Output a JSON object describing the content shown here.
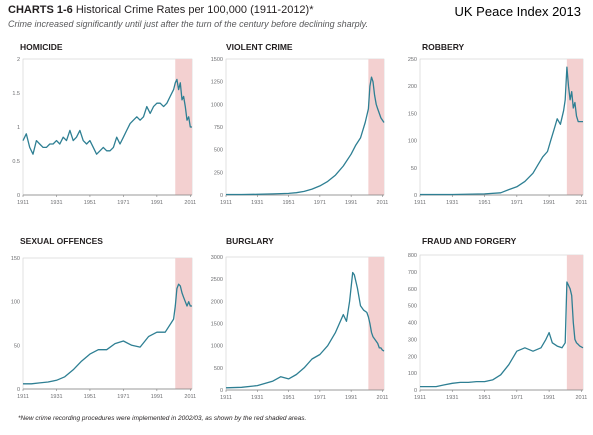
{
  "header": {
    "title_lead": "CHARTS 1-6",
    "title_rest": "Historical Crime Rates per 100,000 (1911-2012)*",
    "subtitle": "Crime increased significantly until just after the turn of the century before declining sharply.",
    "brand": "UK Peace Index 2013"
  },
  "footnote": "*New crime recording procedures were implemented in 2002/03, as shown by the red shaded areas.",
  "colors": {
    "line": "#2e7f93",
    "shade": "#f3d0d0",
    "axis": "#808080",
    "grid": "#cfcfcf"
  },
  "chart_data": [
    {
      "type": "line",
      "title": "HOMICIDE",
      "xlim": [
        1911,
        2012
      ],
      "ylim": [
        0,
        2
      ],
      "x_ticks": [
        "1911",
        "1931",
        "1951",
        "1971",
        "1991",
        "2011"
      ],
      "y_ticks": [
        "0",
        "0.5",
        "1",
        "1.5",
        "2"
      ],
      "shaded": [
        2002,
        2012
      ],
      "x": [
        1911,
        1913,
        1915,
        1917,
        1919,
        1921,
        1923,
        1925,
        1927,
        1929,
        1931,
        1933,
        1935,
        1937,
        1939,
        1941,
        1943,
        1945,
        1947,
        1949,
        1951,
        1953,
        1955,
        1957,
        1959,
        1961,
        1963,
        1965,
        1967,
        1969,
        1971,
        1973,
        1975,
        1977,
        1979,
        1981,
        1983,
        1985,
        1987,
        1989,
        1991,
        1993,
        1995,
        1997,
        1999,
        2001,
        2002,
        2003,
        2004,
        2005,
        2006,
        2007,
        2008,
        2009,
        2010,
        2011,
        2012
      ],
      "y": [
        0.8,
        0.9,
        0.7,
        0.6,
        0.8,
        0.75,
        0.7,
        0.7,
        0.75,
        0.75,
        0.8,
        0.75,
        0.85,
        0.8,
        0.95,
        0.8,
        0.85,
        0.95,
        0.8,
        0.75,
        0.8,
        0.7,
        0.6,
        0.65,
        0.7,
        0.65,
        0.65,
        0.7,
        0.85,
        0.75,
        0.85,
        0.95,
        1.05,
        1.1,
        1.15,
        1.1,
        1.15,
        1.3,
        1.2,
        1.3,
        1.35,
        1.35,
        1.3,
        1.35,
        1.45,
        1.55,
        1.65,
        1.7,
        1.55,
        1.65,
        1.4,
        1.45,
        1.3,
        1.1,
        1.15,
        1.0,
        1.0
      ]
    },
    {
      "type": "line",
      "title": "VIOLENT CRIME",
      "xlim": [
        1911,
        2012
      ],
      "ylim": [
        0,
        1500
      ],
      "x_ticks": [
        "1911",
        "1931",
        "1951",
        "1971",
        "1991",
        "2011"
      ],
      "y_ticks": [
        "0",
        "250",
        "500",
        "750",
        "1000",
        "1250",
        "1500"
      ],
      "shaded": [
        2002,
        2012
      ],
      "x": [
        1911,
        1921,
        1931,
        1941,
        1951,
        1956,
        1961,
        1966,
        1971,
        1976,
        1981,
        1986,
        1991,
        1994,
        1997,
        2000,
        2002,
        2003,
        2004,
        2005,
        2006,
        2007,
        2008,
        2009,
        2010,
        2012
      ],
      "y": [
        5,
        6,
        8,
        12,
        18,
        25,
        40,
        65,
        100,
        150,
        220,
        320,
        450,
        550,
        630,
        800,
        950,
        1200,
        1300,
        1250,
        1100,
        1000,
        950,
        900,
        850,
        800
      ]
    },
    {
      "type": "line",
      "title": "ROBBERY",
      "xlim": [
        1911,
        2012
      ],
      "ylim": [
        0,
        250
      ],
      "x_ticks": [
        "1911",
        "1931",
        "1951",
        "1971",
        "1991",
        "2011"
      ],
      "y_ticks": [
        "0",
        "50",
        "100",
        "150",
        "200",
        "250"
      ],
      "shaded": [
        2002,
        2012
      ],
      "x": [
        1911,
        1931,
        1951,
        1961,
        1966,
        1971,
        1976,
        1981,
        1984,
        1987,
        1990,
        1992,
        1994,
        1996,
        1998,
        2000,
        2001,
        2002,
        2003,
        2004,
        2005,
        2006,
        2007,
        2008,
        2009,
        2010,
        2012
      ],
      "y": [
        1,
        1,
        2,
        4,
        10,
        15,
        25,
        40,
        55,
        70,
        80,
        100,
        120,
        140,
        130,
        155,
        175,
        235,
        200,
        175,
        190,
        160,
        170,
        145,
        135,
        135,
        135
      ]
    },
    {
      "type": "line",
      "title": "SEXUAL OFFENCES",
      "xlim": [
        1911,
        2012
      ],
      "ylim": [
        0,
        150
      ],
      "x_ticks": [
        "1911",
        "1931",
        "1951",
        "1971",
        "1991",
        "2011"
      ],
      "y_ticks": [
        "0",
        "50",
        "100",
        "150"
      ],
      "shaded": [
        2002,
        2012
      ],
      "x": [
        1911,
        1916,
        1921,
        1926,
        1931,
        1936,
        1941,
        1946,
        1951,
        1956,
        1961,
        1966,
        1971,
        1976,
        1981,
        1986,
        1991,
        1996,
        2001,
        2002,
        2003,
        2004,
        2005,
        2006,
        2007,
        2008,
        2009,
        2010,
        2011,
        2012
      ],
      "y": [
        6,
        6,
        7,
        8,
        10,
        14,
        22,
        32,
        40,
        45,
        45,
        52,
        55,
        50,
        48,
        60,
        65,
        65,
        80,
        95,
        115,
        120,
        118,
        110,
        105,
        100,
        95,
        100,
        95,
        95
      ]
    },
    {
      "type": "line",
      "title": "BURGLARY",
      "xlim": [
        1911,
        2012
      ],
      "ylim": [
        0,
        3000
      ],
      "x_ticks": [
        "1911",
        "1931",
        "1951",
        "1971",
        "1991",
        "2011"
      ],
      "y_ticks": [
        "0",
        "500",
        "1000",
        "1500",
        "2000",
        "2500",
        "3000"
      ],
      "shaded": [
        2002,
        2012
      ],
      "x": [
        1911,
        1921,
        1931,
        1941,
        1946,
        1951,
        1956,
        1961,
        1966,
        1971,
        1976,
        1981,
        1986,
        1988,
        1990,
        1992,
        1993,
        1995,
        1997,
        1999,
        2001,
        2002,
        2003,
        2004,
        2005,
        2006,
        2007,
        2008,
        2009,
        2010,
        2011,
        2012
      ],
      "y": [
        50,
        60,
        100,
        200,
        300,
        250,
        350,
        500,
        700,
        800,
        1000,
        1300,
        1700,
        1550,
        2000,
        2650,
        2600,
        2300,
        1900,
        1800,
        1750,
        1650,
        1500,
        1300,
        1200,
        1150,
        1100,
        1050,
        950,
        950,
        900,
        880
      ]
    },
    {
      "type": "line",
      "title": "FRAUD AND FORGERY",
      "xlim": [
        1911,
        2012
      ],
      "ylim": [
        0,
        800
      ],
      "x_ticks": [
        "1911",
        "1931",
        "1951",
        "1971",
        "1991",
        "2011"
      ],
      "y_ticks": [
        "0",
        "100",
        "200",
        "300",
        "400",
        "500",
        "600",
        "700",
        "800"
      ],
      "shaded": [
        2002,
        2012
      ],
      "x": [
        1911,
        1921,
        1926,
        1931,
        1936,
        1941,
        1946,
        1951,
        1956,
        1961,
        1966,
        1971,
        1976,
        1981,
        1986,
        1989,
        1991,
        1993,
        1996,
        1999,
        2001,
        2002,
        2003,
        2004,
        2005,
        2006,
        2007,
        2008,
        2009,
        2010,
        2012
      ],
      "y": [
        20,
        20,
        30,
        40,
        45,
        45,
        50,
        50,
        60,
        90,
        150,
        230,
        250,
        230,
        250,
        300,
        340,
        280,
        260,
        250,
        280,
        640,
        620,
        600,
        560,
        400,
        300,
        280,
        270,
        260,
        250
      ]
    }
  ]
}
